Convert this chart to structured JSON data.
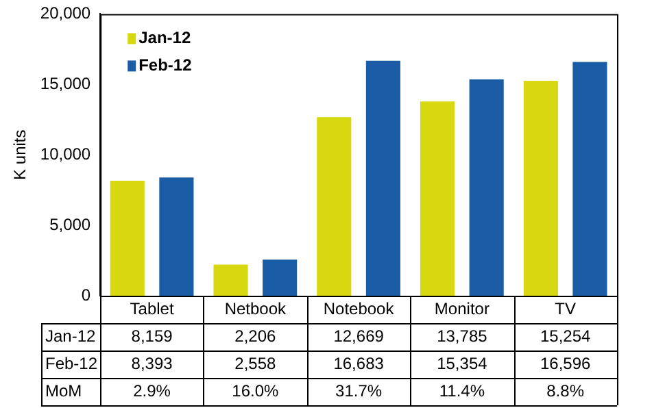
{
  "chart_data": {
    "type": "bar",
    "ylabel": "K units",
    "categories": [
      "Tablet",
      "Netbook",
      "Notebook",
      "Monitor",
      "TV"
    ],
    "series": [
      {
        "name": "Jan-12",
        "color": "#d8d810",
        "values": [
          8159,
          2206,
          12669,
          13785,
          15254
        ],
        "value_labels": [
          "8,159",
          "2,206",
          "12,669",
          "13,785",
          "15,254"
        ]
      },
      {
        "name": "Feb-12",
        "color": "#1b5ca6",
        "values": [
          8393,
          2558,
          16683,
          15354,
          16596
        ],
        "value_labels": [
          "8,393",
          "2,558",
          "16,683",
          "15,354",
          "16,596"
        ]
      }
    ],
    "ylim": [
      0,
      20000
    ],
    "yticks": [
      0,
      {
        "value": 5000,
        "label": "5,000"
      },
      {
        "value": 10000,
        "label": "10,000"
      },
      {
        "value": 15000,
        "label": "15,000"
      },
      {
        "value": 20000,
        "label": "20,000"
      }
    ],
    "grid": false,
    "legend": "top left",
    "annotations": [
      "MoM",
      "2.9%",
      "16.0%",
      "31.7%",
      "11.4%",
      "8.8%"
    ]
  }
}
